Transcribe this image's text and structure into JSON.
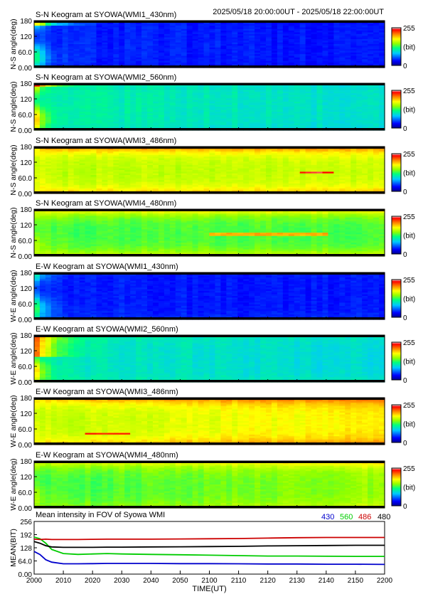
{
  "header": {
    "date_range": "2025/05/18 20:00:00UT - 2025/05/18 22:00:00UT"
  },
  "colorbar": {
    "max_label": "255",
    "unit_label": "(bit)",
    "min_label": "0",
    "stops": [
      "#00008f",
      "#0000ff",
      "#00c8ff",
      "#00ff80",
      "#90ff00",
      "#ffff00",
      "#ff8000",
      "#ff0000",
      "#ffffff"
    ]
  },
  "keograms": [
    {
      "title": "S-N Keogram at SYOWA(WMI1_430nm)",
      "ylabel": "N-S angle(deg)",
      "yticks": [
        "180",
        "120",
        "60.0",
        "0.00"
      ],
      "intensity": {
        "edge_top": 35,
        "base": 40,
        "edge_bottom": 35,
        "early_bright": 150,
        "trend_end": -6
      },
      "features": [
        {
          "kind": "early_band",
          "from_deg": 160,
          "to_deg": 178,
          "level": 200
        }
      ]
    },
    {
      "title": "S-N Keogram at SYOWA(WMI2_560nm)",
      "ylabel": "N-S angle(deg)",
      "yticks": [
        "180",
        "120",
        "60.0",
        "0.00"
      ],
      "intensity": {
        "edge_top": 105,
        "base": 108,
        "edge_bottom": 100,
        "early_bright": 215,
        "trend_end": -12
      },
      "features": [
        {
          "kind": "early_band",
          "from_deg": 165,
          "to_deg": 178,
          "level": 245
        }
      ]
    },
    {
      "title": "S-N Keogram at SYOWA(WMI3_486nm)",
      "ylabel": "N-S angle(deg)",
      "yticks": [
        "180",
        "120",
        "60.0",
        "0.00"
      ],
      "intensity": {
        "edge_top": 225,
        "base": 158,
        "edge_bottom": 205,
        "early_bright": 175,
        "trend_end": 4
      },
      "features": [
        {
          "kind": "streak",
          "time": 2136,
          "span": 12,
          "deg": 78,
          "level": 240
        }
      ]
    },
    {
      "title": "S-N Keogram at SYOWA(WMI4_480nm)",
      "ylabel": "N-S angle(deg)",
      "yticks": [
        "180",
        "120",
        "60.0",
        "0.00"
      ],
      "intensity": {
        "edge_top": 200,
        "base": 130,
        "edge_bottom": 175,
        "early_bright": 160,
        "trend_end": 2
      },
      "features": [
        {
          "kind": "streak",
          "time": 2080,
          "span": 40,
          "deg": 84,
          "level": 200
        }
      ]
    },
    {
      "title": "E-W Keogram at SYOWA(WMI1_430nm)",
      "ylabel": "W-E angle(deg)",
      "yticks": [
        "180",
        "120",
        "60.0",
        "0.00"
      ],
      "intensity": {
        "edge_top": 40,
        "base": 38,
        "edge_bottom": 45,
        "early_bright": 150,
        "trend_end": -4
      },
      "features": []
    },
    {
      "title": "E-W Keogram at SYOWA(WMI2_560nm)",
      "ylabel": "W-E angle(deg)",
      "yticks": [
        "180",
        "120",
        "60.0",
        "0.00"
      ],
      "intensity": {
        "edge_top": 110,
        "base": 100,
        "edge_bottom": 110,
        "early_bright": 210,
        "trend_end": -8
      },
      "features": [
        {
          "kind": "early_band",
          "from_deg": 95,
          "to_deg": 178,
          "level": 230
        }
      ]
    },
    {
      "title": "E-W Keogram at SYOWA(WMI3_486nm)",
      "ylabel": "W-E angle(deg)",
      "yticks": [
        "180",
        "120",
        "60.0",
        "0.00"
      ],
      "intensity": {
        "edge_top": 215,
        "base": 160,
        "edge_bottom": 200,
        "early_bright": 175,
        "trend_end": 22
      },
      "features": [
        {
          "kind": "streak",
          "time": 2025,
          "span": 15,
          "deg": 40,
          "level": 235
        }
      ]
    },
    {
      "title": "E-W Keogram at SYOWA(WMI4_480nm)",
      "ylabel": "W-E angle(deg)",
      "yticks": [
        "180",
        "120",
        "60.0",
        "0.00"
      ],
      "intensity": {
        "edge_top": 185,
        "base": 128,
        "edge_bottom": 150,
        "early_bright": 160,
        "trend_end": 22
      },
      "features": []
    }
  ],
  "mean_panel": {
    "title": "Mean intensity in FOV of Syowa WMI",
    "ylabel": "MEAN(BIT)",
    "xlabel": "TIME(UT)",
    "yticks": [
      "256",
      "192",
      "128",
      "64.0",
      "0.00"
    ],
    "legend": [
      {
        "label": "430",
        "color": "#0000cc"
      },
      {
        "label": "560",
        "color": "#00cc00"
      },
      {
        "label": "486",
        "color": "#cc0000"
      },
      {
        "label": "480",
        "color": "#000000"
      }
    ]
  },
  "xaxis": {
    "ticks": [
      "2000",
      "2010",
      "2020",
      "2030",
      "2040",
      "2050",
      "2100",
      "2110",
      "2120",
      "2130",
      "2140",
      "2150",
      "2200"
    ]
  },
  "chart_data": {
    "type": "line",
    "title": "Mean intensity in FOV of Syowa WMI",
    "xlabel": "TIME(UT)",
    "ylabel": "MEAN(BIT)",
    "ylim": [
      0,
      256
    ],
    "x": [
      "2000",
      "2002",
      "2004",
      "2006",
      "2010",
      "2015",
      "2020",
      "2025",
      "2030",
      "2040",
      "2050",
      "2100",
      "2110",
      "2120",
      "2130",
      "2140",
      "2150",
      "2200"
    ],
    "series": [
      {
        "name": "430",
        "values": [
          110,
          95,
          70,
          58,
          50,
          50,
          51,
          52,
          52,
          52,
          51,
          51,
          50,
          49,
          49,
          48,
          48,
          47
        ]
      },
      {
        "name": "560",
        "values": [
          180,
          172,
          150,
          120,
          100,
          96,
          98,
          100,
          98,
          96,
          94,
          92,
          90,
          88,
          88,
          87,
          86,
          86
        ]
      },
      {
        "name": "486",
        "values": [
          170,
          168,
          170,
          168,
          168,
          168,
          169,
          170,
          170,
          170,
          171,
          172,
          173,
          175,
          177,
          178,
          178,
          178
        ]
      },
      {
        "name": "480",
        "values": [
          158,
          150,
          138,
          132,
          130,
          130,
          130,
          131,
          131,
          132,
          133,
          134,
          135,
          137,
          138,
          139,
          140,
          140
        ]
      }
    ]
  }
}
